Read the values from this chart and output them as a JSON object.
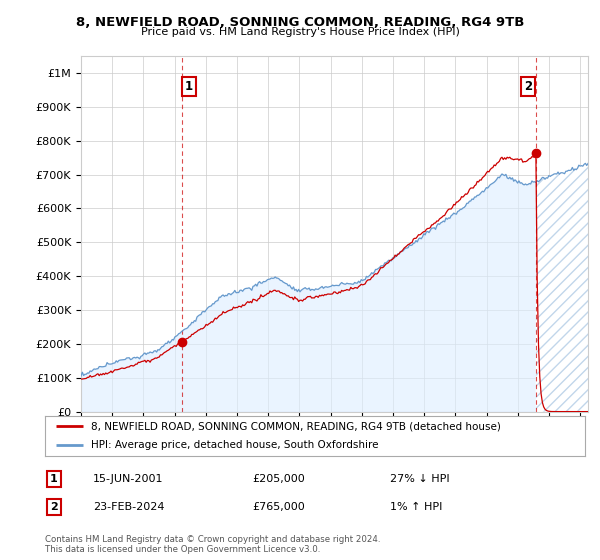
{
  "title": "8, NEWFIELD ROAD, SONNING COMMON, READING, RG4 9TB",
  "subtitle": "Price paid vs. HM Land Registry's House Price Index (HPI)",
  "legend_line1": "8, NEWFIELD ROAD, SONNING COMMON, READING, RG4 9TB (detached house)",
  "legend_line2": "HPI: Average price, detached house, South Oxfordshire",
  "annotation1_date": "15-JUN-2001",
  "annotation1_price": "£205,000",
  "annotation1_hpi": "27% ↓ HPI",
  "annotation2_date": "23-FEB-2024",
  "annotation2_price": "£765,000",
  "annotation2_hpi": "1% ↑ HPI",
  "footer": "Contains HM Land Registry data © Crown copyright and database right 2024.\nThis data is licensed under the Open Government Licence v3.0.",
  "price_color": "#cc0000",
  "hpi_color": "#6699cc",
  "hpi_fill_color": "#ddeeff",
  "annotation_box_color": "#cc0000",
  "dashed_line_color": "#cc0000",
  "ylim": [
    0,
    1050000
  ],
  "yticks": [
    0,
    100000,
    200000,
    300000,
    400000,
    500000,
    600000,
    700000,
    800000,
    900000,
    1000000
  ],
  "ytick_labels": [
    "£0",
    "£100K",
    "£200K",
    "£300K",
    "£400K",
    "£500K",
    "£600K",
    "£700K",
    "£800K",
    "£900K",
    "£1M"
  ],
  "xlim_start": 1995.0,
  "xlim_end": 2027.5,
  "sale1_x": 2001.46,
  "sale1_y": 205000,
  "sale2_x": 2024.14,
  "sale2_y": 765000,
  "background_color": "#ffffff",
  "grid_color": "#cccccc"
}
